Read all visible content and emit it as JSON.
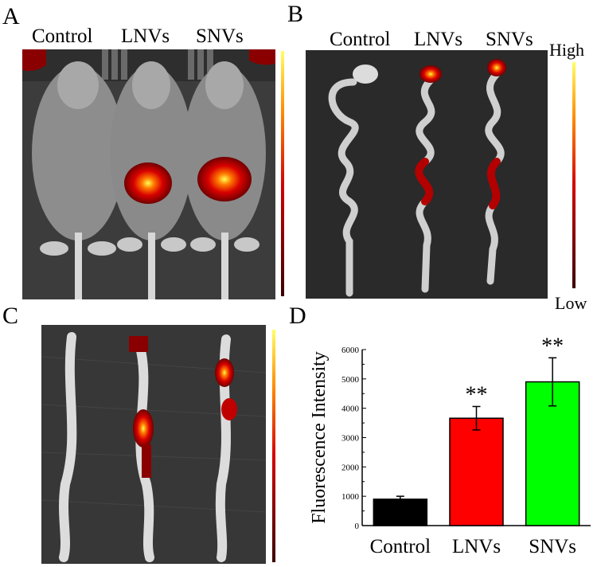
{
  "panels": {
    "a": {
      "letter": "A",
      "columns": [
        "Control",
        "LNVs",
        "SNVs"
      ]
    },
    "b": {
      "letter": "B",
      "columns": [
        "Control",
        "LNVs",
        "SNVs"
      ],
      "scale_high": "High",
      "scale_low": "Low"
    },
    "c": {
      "letter": "C"
    },
    "d": {
      "letter": "D"
    }
  },
  "colors": {
    "control": "#000000",
    "lnvs": "#ff0000",
    "snvs": "#00ff00",
    "image_bg": "#3a3a3a"
  },
  "chart_data": {
    "type": "bar",
    "categories": [
      "Control",
      "LNVs",
      "SNVs"
    ],
    "values": [
      900,
      3660,
      4900
    ],
    "errors": [
      100,
      400,
      820
    ],
    "annotations": [
      "",
      "**",
      "**"
    ],
    "ylabel": "Fluorescence Intensity",
    "xlabel": "",
    "ylim": [
      0,
      6000
    ],
    "yticks": [
      0,
      1000,
      2000,
      3000,
      4000,
      5000,
      6000
    ],
    "colors": [
      "#000000",
      "#ff0000",
      "#00ff00"
    ],
    "grid": false
  }
}
